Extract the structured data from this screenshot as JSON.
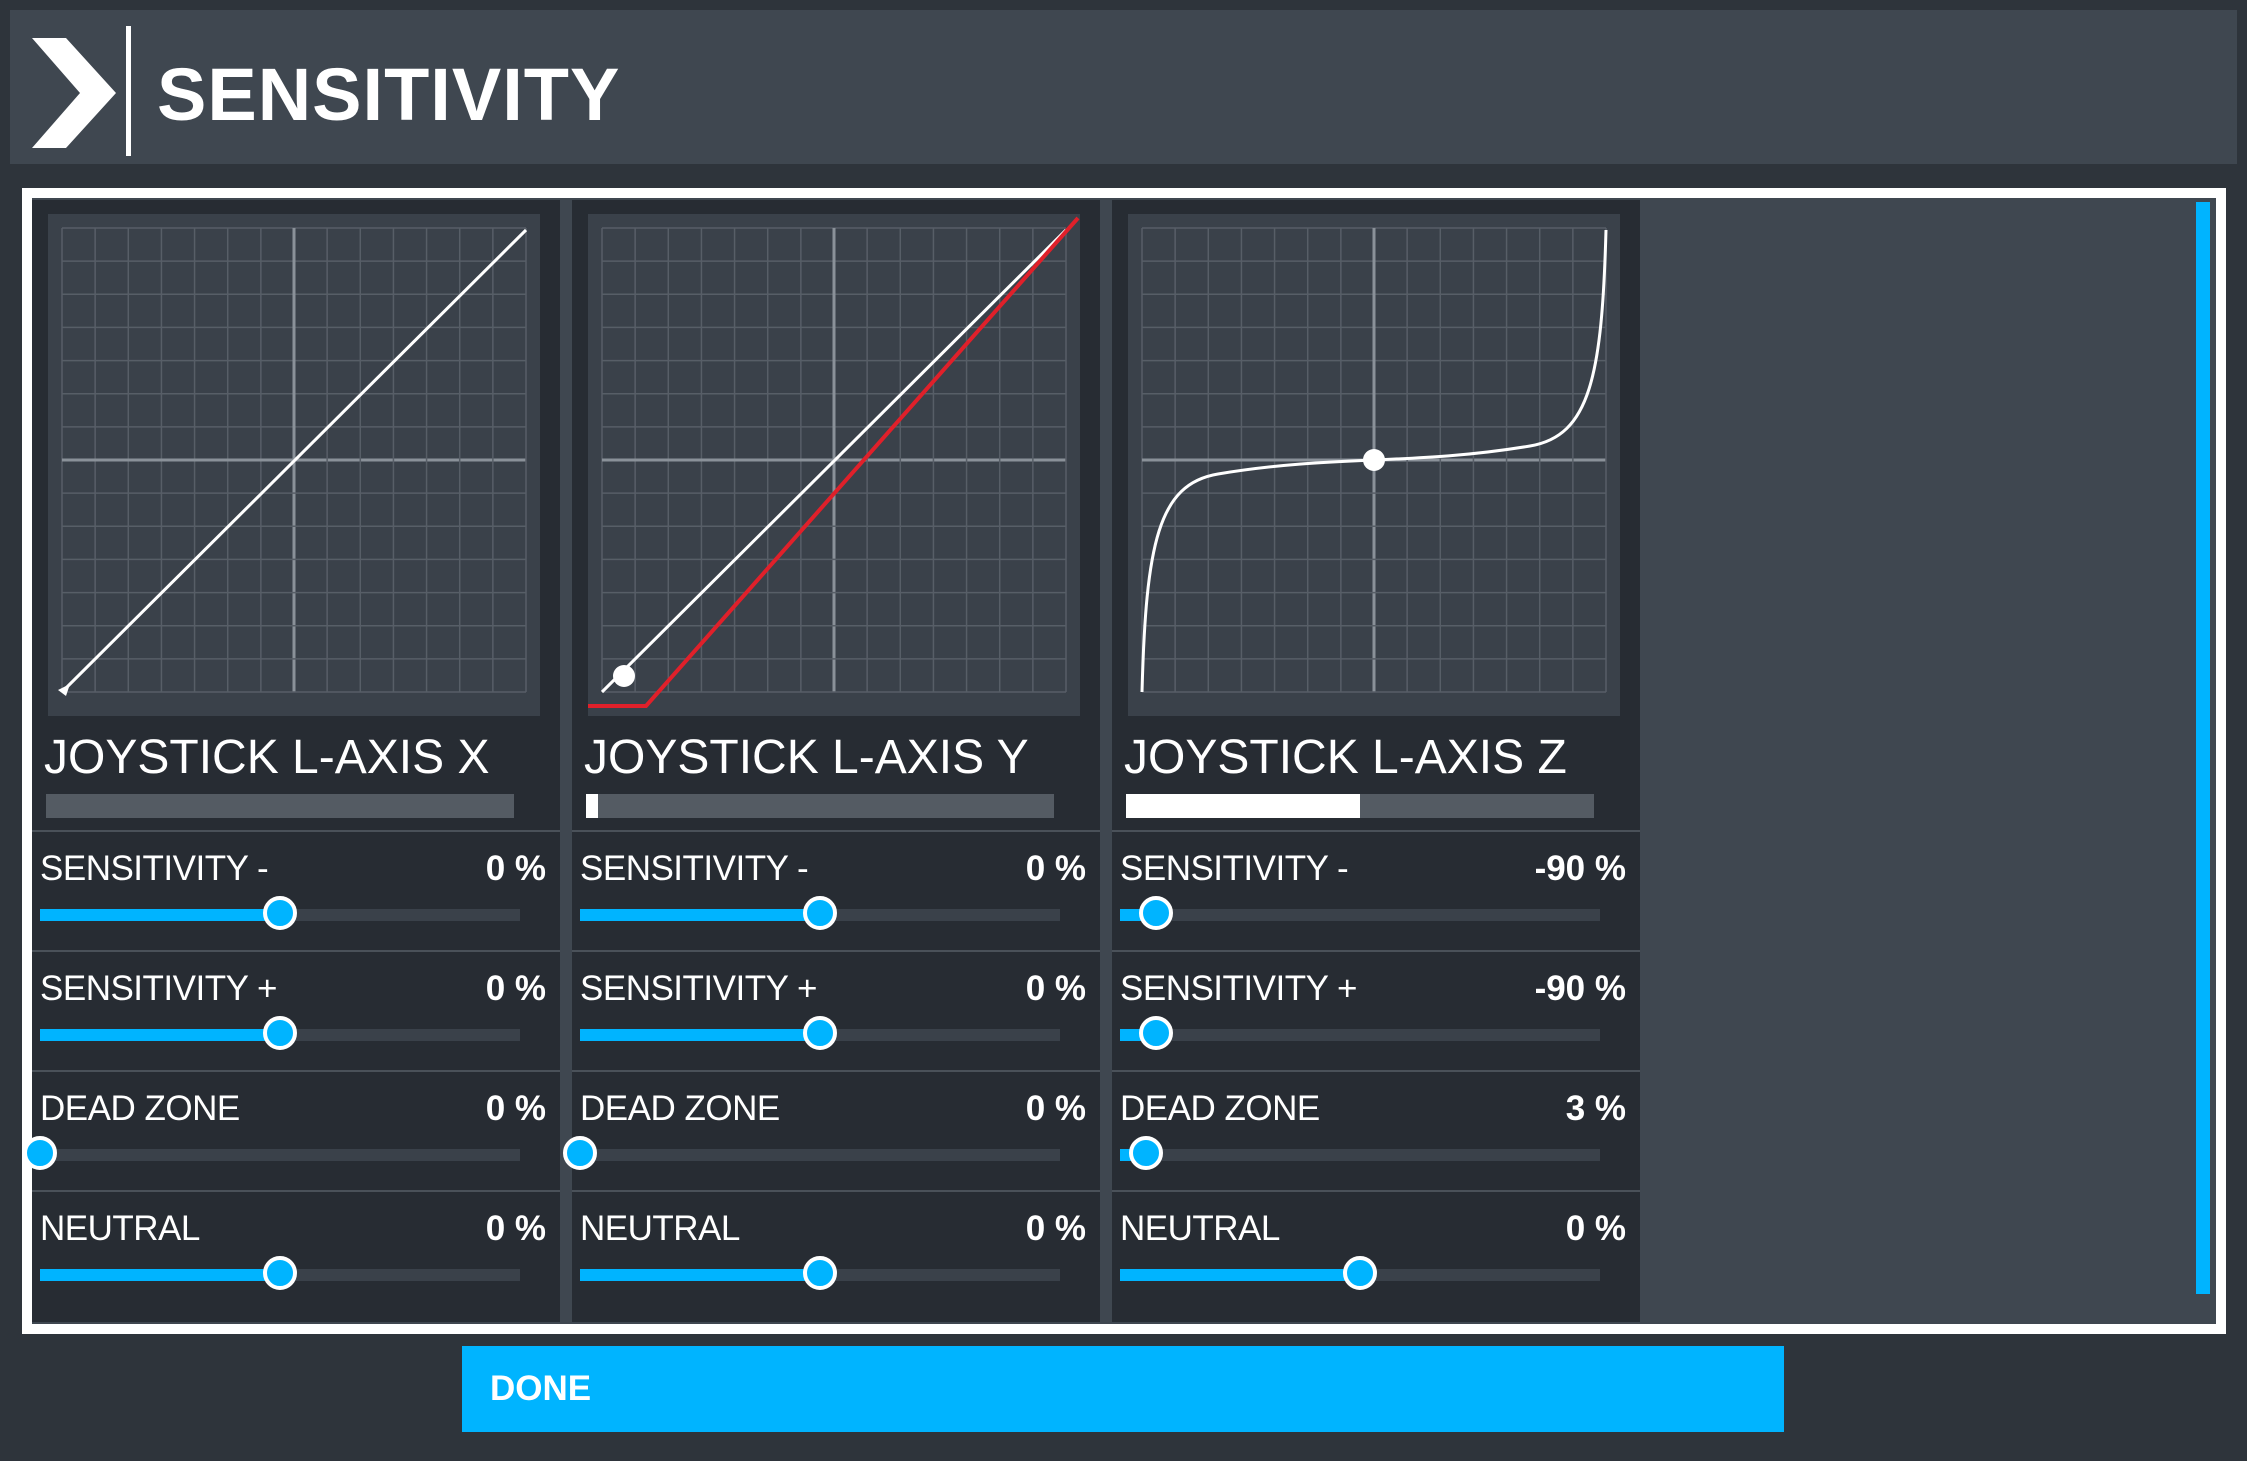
{
  "header": {
    "title": "SENSITIVITY",
    "icon": "chevron-right-icon"
  },
  "colors": {
    "accent": "#00b4ff",
    "panel": "#272c33",
    "graph_bg": "#3a414a",
    "curve_red": "#e0202a"
  },
  "panels": [
    {
      "axis_name": "JOYSTICK L-AXIS X",
      "input_level": 0,
      "settings": [
        {
          "label": "SENSITIVITY -",
          "value": "0 %",
          "position": 0.5
        },
        {
          "label": "SENSITIVITY +",
          "value": "0 %",
          "position": 0.5
        },
        {
          "label": "DEAD ZONE",
          "value": "0 %",
          "position": 0
        },
        {
          "label": "NEUTRAL",
          "value": "0 %",
          "position": 0.5
        }
      ]
    },
    {
      "axis_name": "JOYSTICK L-AXIS Y",
      "input_level": 0.025,
      "settings": [
        {
          "label": "SENSITIVITY -",
          "value": "0 %",
          "position": 0.5
        },
        {
          "label": "SENSITIVITY +",
          "value": "0 %",
          "position": 0.5
        },
        {
          "label": "DEAD ZONE",
          "value": "0 %",
          "position": 0
        },
        {
          "label": "NEUTRAL",
          "value": "0 %",
          "position": 0.5
        }
      ]
    },
    {
      "axis_name": "JOYSTICK L-AXIS Z",
      "input_level": 0.5,
      "settings": [
        {
          "label": "SENSITIVITY -",
          "value": "-90 %",
          "position": 0.075
        },
        {
          "label": "SENSITIVITY +",
          "value": "-90 %",
          "position": 0.075
        },
        {
          "label": "DEAD ZONE",
          "value": "3 %",
          "position": 0.055
        },
        {
          "label": "NEUTRAL",
          "value": "0 %",
          "position": 0.5
        }
      ]
    }
  ],
  "done_label": "DONE"
}
